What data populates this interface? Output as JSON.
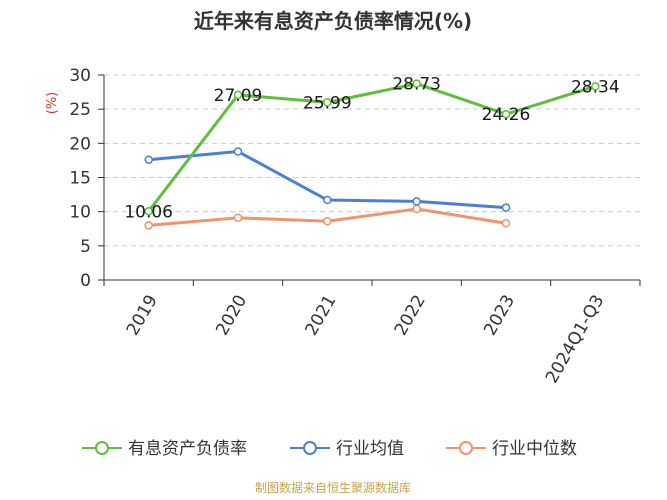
{
  "chart_data": {
    "type": "line",
    "title": "近年来有息资产负债率情况(%)",
    "ylabel": "(%)",
    "categories": [
      "2019",
      "2020",
      "2021",
      "2022",
      "2023",
      "2024Q1-Q3"
    ],
    "ylim": [
      0,
      30
    ],
    "yticks": [
      "0",
      "5",
      "10",
      "15",
      "20",
      "25",
      "30"
    ],
    "grid": "horizontal dashed",
    "legend_position": "bottom",
    "series": [
      {
        "name": "有息资产负债率",
        "color": "#5dbf3b",
        "values": [
          10.06,
          27.09,
          25.99,
          28.73,
          24.26,
          28.34
        ],
        "labels": [
          "10.06",
          "27.09",
          "25.99",
          "28.73",
          "24.26",
          "28.34"
        ]
      },
      {
        "name": "行业均值",
        "color": "#4b7fd6",
        "values": [
          17.6,
          18.8,
          11.7,
          11.5,
          10.6,
          null
        ]
      },
      {
        "name": "行业中位数",
        "color": "#f2936a",
        "values": [
          8.0,
          9.1,
          8.6,
          10.4,
          8.3,
          null
        ]
      }
    ],
    "source": "制图数据来自恒生聚源数据库"
  }
}
